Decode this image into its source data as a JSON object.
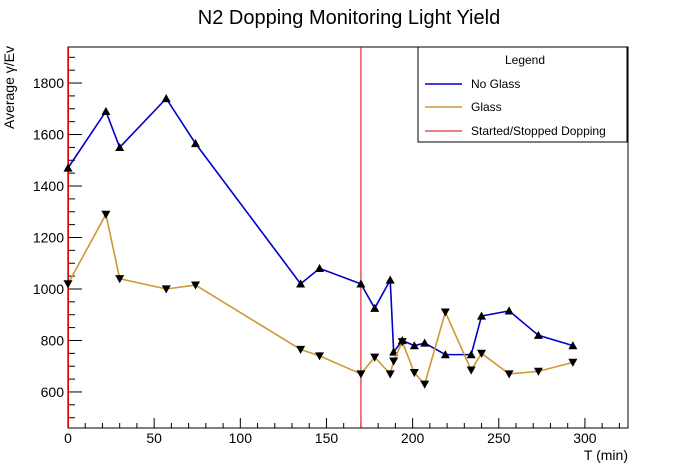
{
  "chart_data": {
    "type": "line",
    "title": "N2 Dopping Monitoring Light Yield",
    "xlabel": "T (min)",
    "ylabel": "Average γ/Ev",
    "xlim": [
      0,
      325
    ],
    "ylim": [
      460,
      1940
    ],
    "x_ticks": [
      0,
      50,
      100,
      150,
      200,
      250,
      300
    ],
    "x_tick_labels": [
      "0",
      "50",
      "100",
      "150",
      "200",
      "250",
      "300"
    ],
    "y_ticks": [
      600,
      800,
      1000,
      1200,
      1400,
      1600,
      1800
    ],
    "y_tick_labels": [
      "600",
      "800",
      "1000",
      "1200",
      "1400",
      "1600",
      "1800"
    ],
    "grid": false,
    "legend": {
      "title": "Legend",
      "placement": "top-right",
      "entries": [
        {
          "label": "No Glass",
          "color": "#0000cc"
        },
        {
          "label": "Glass",
          "color": "#cc9933"
        },
        {
          "label": "Started/Stopped Dopping",
          "color": "#dd0000"
        }
      ]
    },
    "series": [
      {
        "name": "No Glass",
        "color": "#0000cc",
        "marker": "triangle-up",
        "x": [
          0,
          22,
          30,
          57,
          74,
          135,
          146,
          170,
          178,
          187,
          189,
          194,
          201,
          207,
          219,
          234,
          240,
          256,
          273,
          293
        ],
        "y": [
          1470,
          1690,
          1550,
          1740,
          1565,
          1020,
          1080,
          1020,
          925,
          1035,
          755,
          800,
          780,
          790,
          745,
          745,
          895,
          915,
          820,
          780
        ]
      },
      {
        "name": "Glass",
        "color": "#cc9933",
        "marker": "triangle-down",
        "x": [
          0,
          22,
          30,
          57,
          74,
          135,
          146,
          170,
          178,
          187,
          189,
          194,
          201,
          207,
          219,
          234,
          240,
          256,
          273,
          293
        ],
        "y": [
          1020,
          1290,
          1040,
          1000,
          1015,
          765,
          740,
          670,
          735,
          670,
          720,
          795,
          675,
          630,
          910,
          685,
          750,
          670,
          680,
          715
        ]
      }
    ],
    "vlines": [
      {
        "name": "Started/Stopped Dopping",
        "x": 170,
        "color": "#dd0000"
      }
    ]
  }
}
